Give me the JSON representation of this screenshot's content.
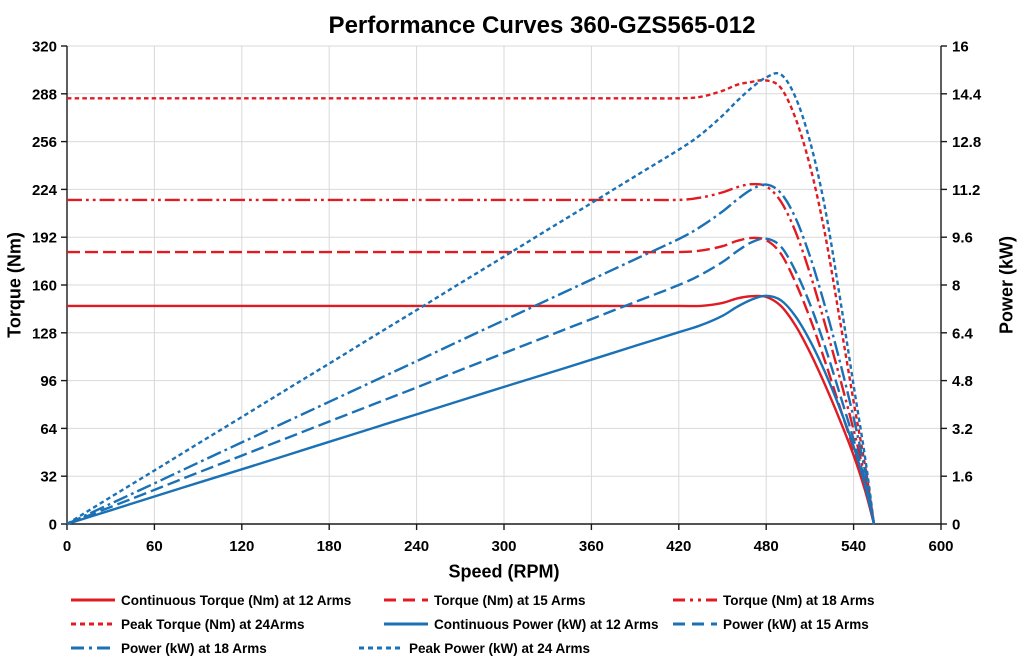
{
  "title": "Performance Curves 360-GZS565-012",
  "colors": {
    "torque_red": "#e01b22",
    "power_blue": "#1b71b5",
    "gridline": "#d9d9d9",
    "axis": "#1a1a1a",
    "text": "#000000"
  },
  "axes": {
    "x": {
      "label": "Speed (RPM)",
      "min": 0,
      "max": 600,
      "ticks": [
        0,
        60,
        120,
        180,
        240,
        300,
        360,
        420,
        480,
        540,
        600
      ]
    },
    "y_left": {
      "label": "Torque (Nm)",
      "min": 0,
      "max": 320,
      "ticks": [
        0,
        32,
        64,
        96,
        128,
        160,
        192,
        224,
        256,
        288,
        320
      ]
    },
    "y_right": {
      "label": "Power (kW)",
      "min": 0,
      "max": 16,
      "ticks": [
        0,
        1.6,
        3.2,
        4.8,
        6.4,
        8,
        9.6,
        11.2,
        12.8,
        14.4,
        16
      ]
    }
  },
  "chart_data": {
    "type": "line",
    "title": "Performance Curves 360-GZS565-012",
    "xlabel": "Speed (RPM)",
    "ylabel_left": "Torque (Nm)",
    "ylabel_right": "Power (kW)",
    "xlim": [
      0,
      600
    ],
    "ylim_left": [
      0,
      320
    ],
    "ylim_right": [
      0,
      16
    ],
    "grid": true,
    "legend_position": "bottom",
    "x": [
      0,
      30,
      60,
      90,
      120,
      150,
      180,
      210,
      240,
      270,
      300,
      330,
      360,
      390,
      420,
      435,
      450,
      460,
      470,
      480,
      490,
      500,
      510,
      520,
      530,
      540,
      548,
      554
    ],
    "series": [
      {
        "name": "Continuous Torque (Nm) at 12 Arms",
        "axis": "left",
        "color": "#e01b22",
        "style": "solid",
        "values": [
          146,
          146,
          146,
          146,
          146,
          146,
          146,
          146,
          146,
          146,
          146,
          146,
          146,
          146,
          146,
          146,
          148,
          151,
          152.5,
          152,
          146,
          133,
          115,
          94,
          71,
          46,
          22,
          0
        ]
      },
      {
        "name": "Torque (Nm) at 15 Arms",
        "axis": "left",
        "color": "#e01b22",
        "style": "dash",
        "values": [
          182,
          182,
          182,
          182,
          182,
          182,
          182,
          182,
          182,
          182,
          182,
          182,
          182,
          182,
          182,
          183,
          186,
          189.5,
          191.5,
          190,
          181,
          162,
          138,
          110,
          80,
          50,
          24,
          0
        ]
      },
      {
        "name": "Torque (Nm) at 18 Arms",
        "axis": "left",
        "color": "#e01b22",
        "style": "dash-dot-dot",
        "values": [
          217,
          217,
          217,
          217,
          217,
          217,
          217,
          217,
          217,
          217,
          217,
          217,
          217,
          217,
          217,
          218.5,
          222,
          225.5,
          227.5,
          226,
          216,
          196,
          168,
          135,
          100,
          63,
          30,
          0
        ]
      },
      {
        "name": "Peak Torque (Nm) at 24Arms",
        "axis": "left",
        "color": "#e01b22",
        "style": "short-dash",
        "values": [
          285,
          285,
          285,
          285,
          285,
          285,
          285,
          285,
          285,
          285,
          285,
          285,
          285,
          285,
          285,
          286,
          290,
          294,
          296,
          297,
          292,
          272,
          240,
          196,
          140,
          82,
          38,
          0
        ]
      },
      {
        "name": "Continuous Power (kW) at 12 Arms",
        "axis": "right",
        "color": "#1b71b5",
        "style": "solid",
        "values": [
          0,
          0.46,
          0.92,
          1.38,
          1.83,
          2.29,
          2.75,
          3.21,
          3.67,
          4.13,
          4.59,
          5.04,
          5.5,
          5.96,
          6.42,
          6.65,
          6.97,
          7.27,
          7.51,
          7.64,
          7.49,
          6.96,
          6.14,
          5.12,
          3.94,
          2.6,
          1.26,
          0
        ]
      },
      {
        "name": "Power (kW) at 15 Arms",
        "axis": "right",
        "color": "#1b71b5",
        "style": "dash",
        "values": [
          0,
          0.57,
          1.14,
          1.72,
          2.29,
          2.86,
          3.43,
          4.0,
          4.57,
          5.15,
          5.72,
          6.29,
          6.86,
          7.43,
          8.0,
          8.34,
          8.77,
          9.13,
          9.43,
          9.55,
          9.29,
          8.48,
          7.37,
          5.99,
          4.44,
          2.83,
          1.38,
          0
        ]
      },
      {
        "name": "Power (kW) at 18 Arms",
        "axis": "right",
        "color": "#1b71b5",
        "style": "dash-dot",
        "values": [
          0,
          0.68,
          1.36,
          2.05,
          2.73,
          3.41,
          4.09,
          4.77,
          5.45,
          6.14,
          6.82,
          7.5,
          8.18,
          8.86,
          9.54,
          9.95,
          10.46,
          10.86,
          11.2,
          11.36,
          11.08,
          10.26,
          8.97,
          7.35,
          5.55,
          3.56,
          1.72,
          0
        ]
      },
      {
        "name": "Peak Power (kW) at 24 Arms",
        "axis": "right",
        "color": "#1b71b5",
        "style": "short-dash",
        "values": [
          0,
          0.9,
          1.79,
          2.69,
          3.58,
          4.48,
          5.37,
          6.27,
          7.16,
          8.06,
          8.95,
          9.85,
          10.74,
          11.64,
          12.53,
          13.03,
          13.67,
          14.16,
          14.6,
          14.95,
          15.05,
          14.3,
          12.82,
          10.67,
          7.77,
          4.64,
          2.18,
          0
        ]
      }
    ],
    "legend_rows": [
      [
        0,
        1,
        2
      ],
      [
        3,
        4,
        5
      ],
      [
        6,
        7
      ]
    ]
  }
}
